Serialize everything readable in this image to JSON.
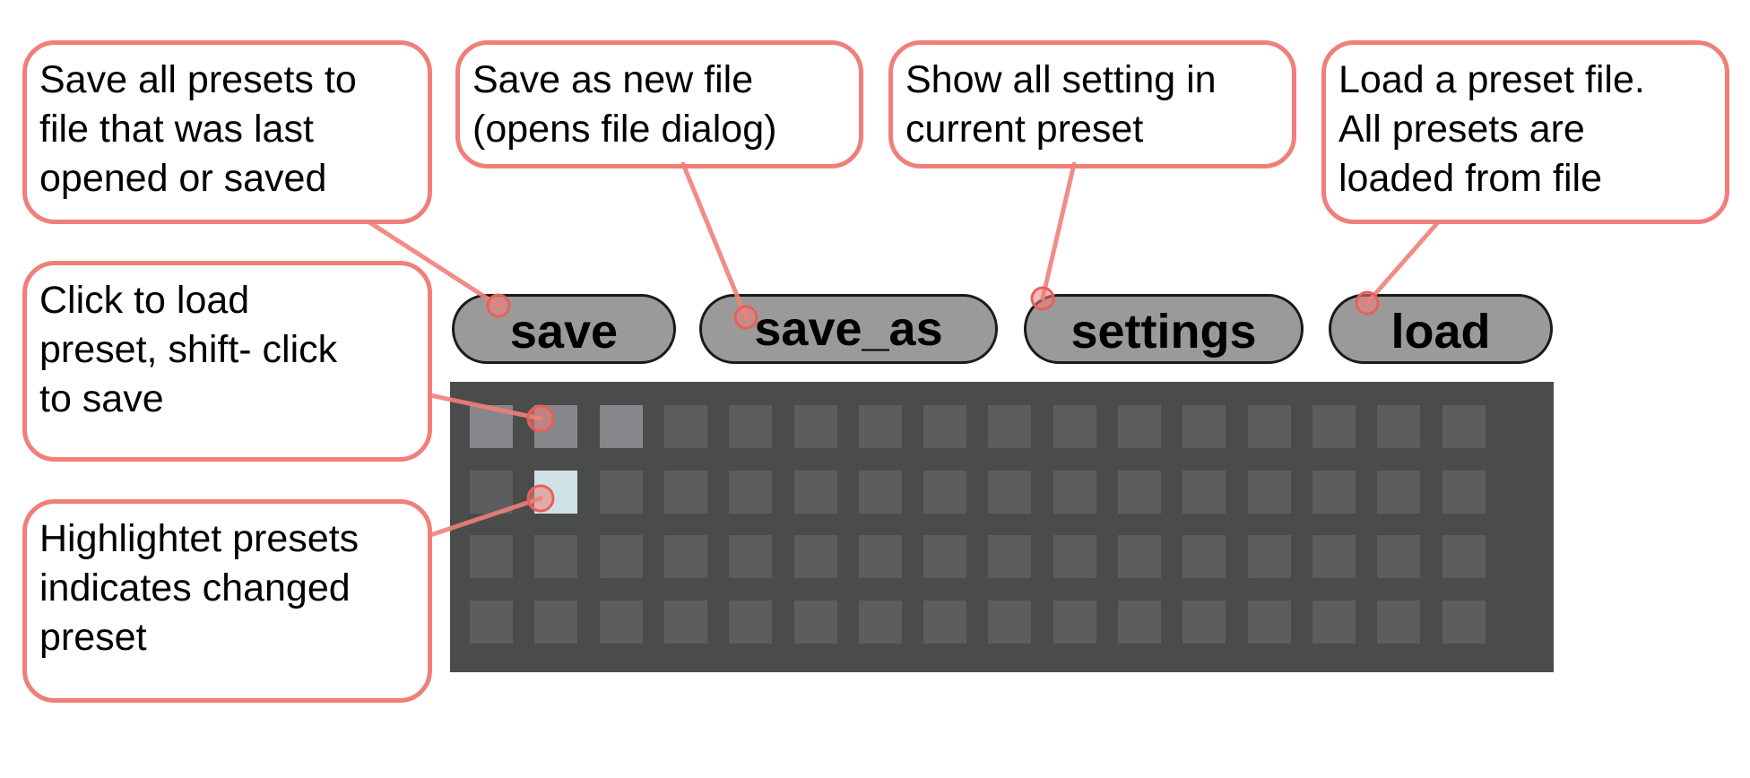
{
  "callouts": {
    "save": "Save all presets to\nfile that was last\nopened or saved",
    "save_as": "Save as new file\n(opens file dialog)",
    "settings": "Show all setting in\ncurrent preset",
    "load": "Load a preset file.\nAll presets are\nloaded from file",
    "click": "Click to load\npreset, shift- click\nto save",
    "highlight": "Highlightet presets\nindicates changed\npreset"
  },
  "buttons": {
    "save": "save",
    "save_as": "save_as",
    "settings": "settings",
    "load": "load"
  },
  "preset_grid": {
    "rows": 4,
    "columns": 16,
    "stored_cells": [
      [
        0,
        0
      ],
      [
        0,
        1
      ],
      [
        0,
        2
      ]
    ],
    "changed_cells": [
      [
        1,
        1
      ]
    ]
  },
  "colors": {
    "callout_border": "#f07f7a",
    "connector": "#f07f7a",
    "button_fill": "#9a9a9a",
    "grid_background": "#4a4c4c",
    "cell_empty": "#5b5d5f",
    "cell_stored": "#85878a",
    "cell_changed": "#cfe1e6"
  }
}
